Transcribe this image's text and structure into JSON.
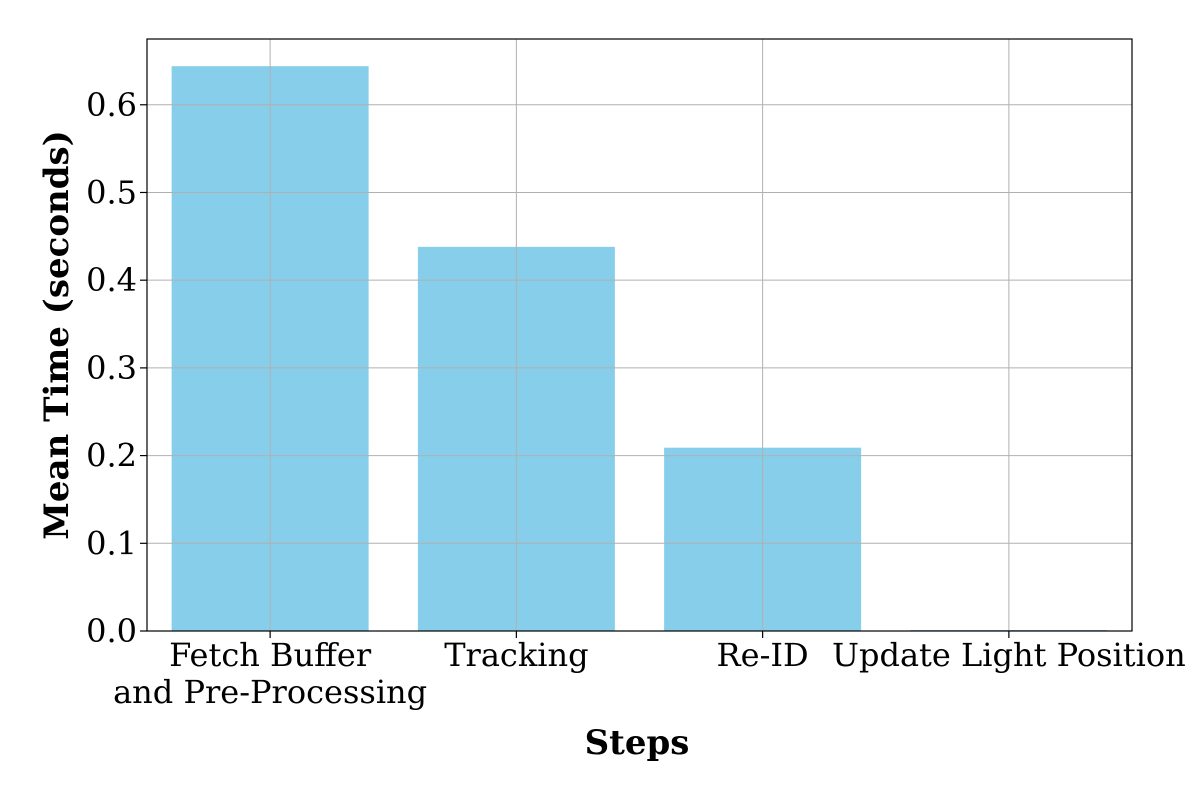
{
  "chart_data": {
    "type": "bar",
    "title": "",
    "xlabel": "Steps",
    "ylabel": "Mean Time (seconds)",
    "categories": [
      [
        "Fetch Buffer",
        "and Pre-Processing"
      ],
      [
        "Tracking"
      ],
      [
        "Re-ID"
      ],
      [
        "Update Light Position"
      ]
    ],
    "values": [
      0.644,
      0.438,
      0.209,
      0.001
    ],
    "ylim": [
      0,
      0.675
    ],
    "yticks": [
      "0.0",
      "0.1",
      "0.2",
      "0.3",
      "0.4",
      "0.5",
      "0.6"
    ],
    "grid": true,
    "legend": "none",
    "colors": {
      "bar": "#87ceeb",
      "grid": "#b0b0b0",
      "axis": "#000000"
    }
  }
}
